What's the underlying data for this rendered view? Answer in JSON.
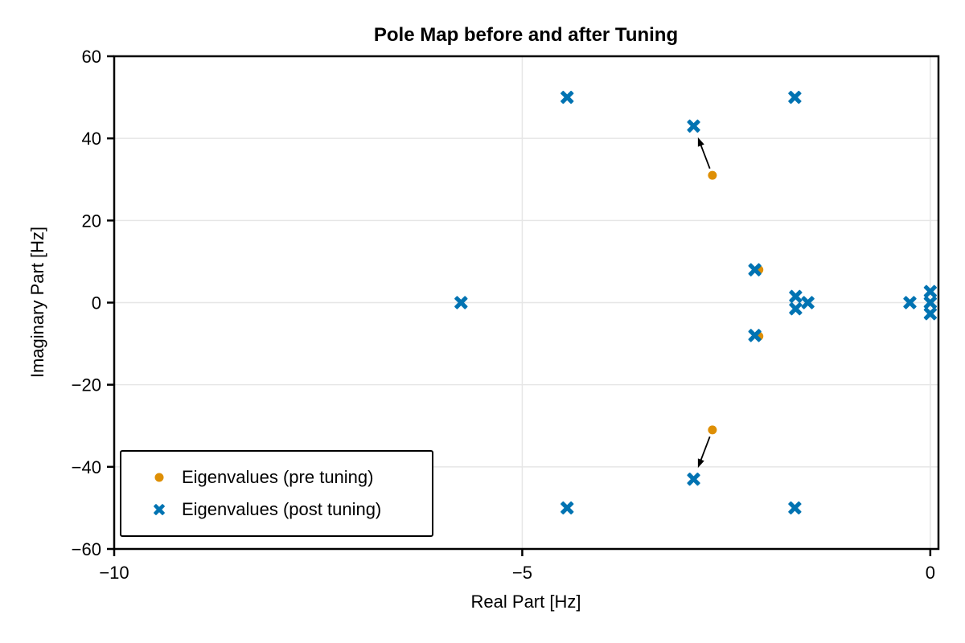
{
  "chart_data": {
    "type": "scatter",
    "title": "Pole Map before and after Tuning",
    "xlabel": "Real Part [Hz]",
    "ylabel": "Imaginary Part [Hz]",
    "xlim": [
      -10,
      0.1
    ],
    "ylim": [
      -60,
      60
    ],
    "grid": true,
    "grid_color": "#e6e6e6",
    "axis_color": "#000000",
    "legend_position": "lower left",
    "x_ticks": {
      "values": [
        -10,
        -5,
        0
      ],
      "labels": [
        "−10",
        "−5",
        "0"
      ]
    },
    "y_ticks": {
      "values": [
        60,
        40,
        20,
        0,
        -20,
        -40,
        -60
      ],
      "labels": [
        "60",
        "40",
        "20",
        "0",
        "−20",
        "−40",
        "−60"
      ]
    },
    "series": [
      {
        "name": "Eigenvalues (pre tuning)",
        "marker": "circle",
        "color": "#DE8F05",
        "points": [
          [
            -2.67,
            31
          ],
          [
            -2.67,
            -31
          ],
          [
            -2.1,
            8
          ],
          [
            -2.1,
            -8.2
          ]
        ]
      },
      {
        "name": "Eigenvalues (post tuning)",
        "marker": "x",
        "color": "#0173B2",
        "points": [
          [
            -5.75,
            0
          ],
          [
            -4.45,
            50
          ],
          [
            -4.45,
            -50
          ],
          [
            -2.9,
            43
          ],
          [
            -2.9,
            -43
          ],
          [
            -2.15,
            8
          ],
          [
            -2.15,
            -8
          ],
          [
            -1.66,
            50
          ],
          [
            -1.66,
            -50
          ],
          [
            -1.65,
            1.5
          ],
          [
            -1.65,
            -1.5
          ],
          [
            -1.5,
            0
          ],
          [
            -0.25,
            0
          ],
          [
            0,
            2.7
          ],
          [
            0,
            0
          ],
          [
            0,
            -2.7
          ]
        ]
      }
    ],
    "annotations": [
      {
        "type": "arrow",
        "from": [
          -2.67,
          31
        ],
        "to": [
          -2.9,
          43
        ],
        "color": "#000000"
      },
      {
        "type": "arrow",
        "from": [
          -2.67,
          -31
        ],
        "to": [
          -2.9,
          -43
        ],
        "color": "#000000"
      }
    ]
  }
}
